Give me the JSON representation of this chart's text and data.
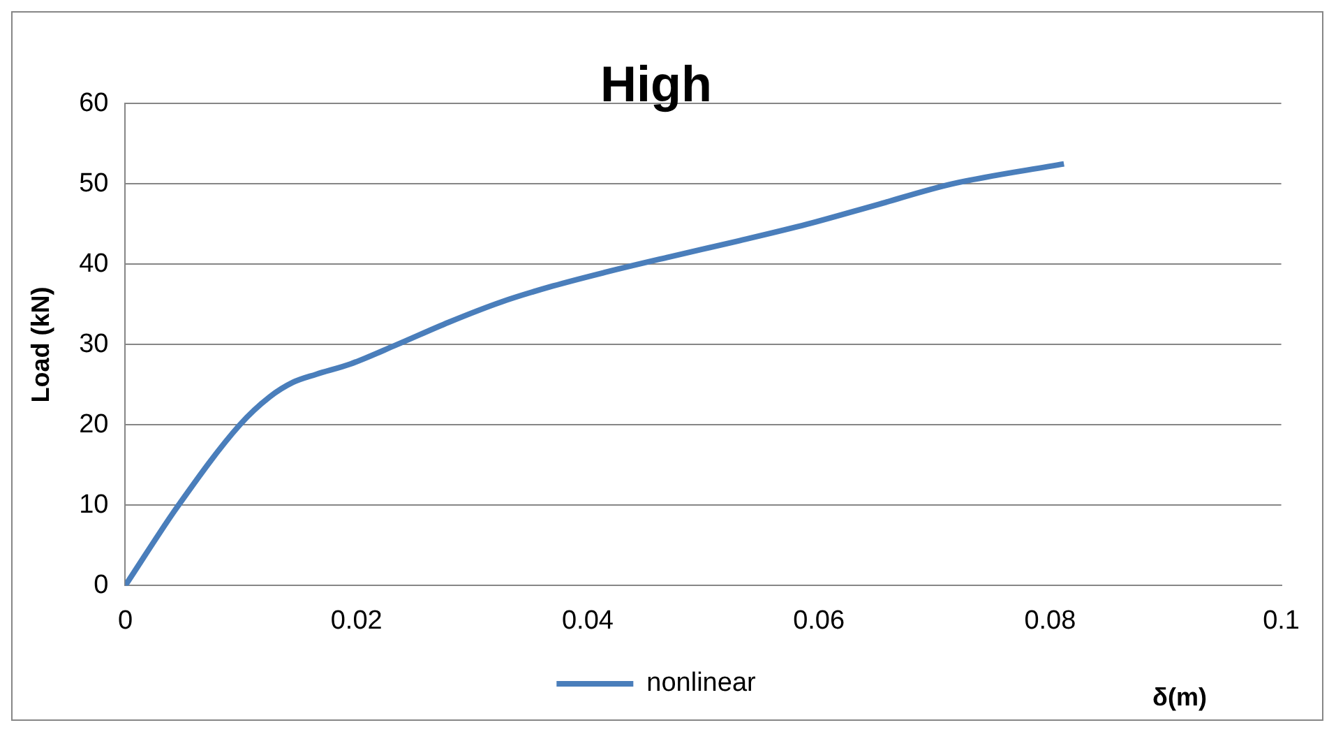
{
  "chart_data": {
    "type": "line",
    "title": "High",
    "xlabel": "δ(m)",
    "ylabel": "Load (kN)",
    "xlim": [
      0,
      0.1
    ],
    "xticks": [
      0,
      0.02,
      0.04,
      0.06,
      0.08,
      0.1
    ],
    "ylim": [
      0,
      60
    ],
    "yticks": [
      0,
      10,
      20,
      30,
      40,
      50,
      60
    ],
    "grid": "y",
    "legend": "bottom",
    "marker": "none",
    "line_style": "solid",
    "series": [
      {
        "name": "nonlinear",
        "color": "#4a7ebb",
        "x": [
          0,
          0.0046,
          0.0099,
          0.0125,
          0.0145,
          0.0165,
          0.0195,
          0.0235,
          0.028,
          0.0325,
          0.037,
          0.0415,
          0.047,
          0.053,
          0.059,
          0.065,
          0.0715,
          0.0812
        ],
        "values": [
          0,
          10,
          20,
          23.5,
          25.3,
          26.3,
          27.6,
          30,
          32.8,
          35.3,
          37.3,
          39,
          40.9,
          42.9,
          45,
          47.4,
          50,
          52.5
        ]
      }
    ]
  }
}
